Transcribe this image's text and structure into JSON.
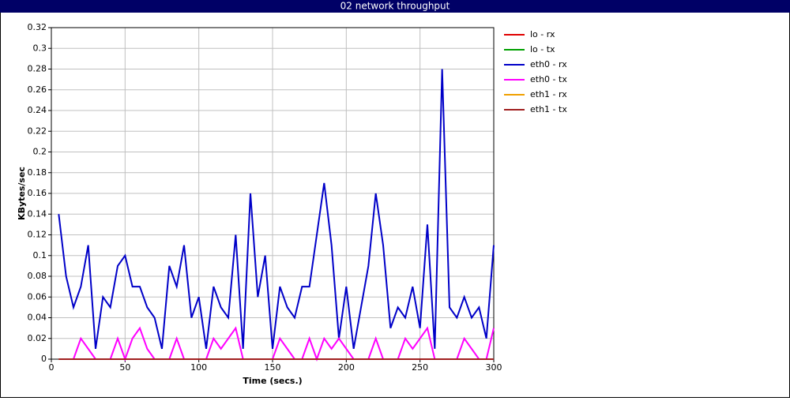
{
  "chart_data": {
    "type": "line",
    "title": "02 network throughput",
    "xlabel": "Time (secs.)",
    "ylabel": "KBytes/sec",
    "x": [
      5,
      10,
      15,
      20,
      25,
      30,
      35,
      40,
      45,
      50,
      55,
      60,
      65,
      70,
      75,
      80,
      85,
      90,
      95,
      100,
      105,
      110,
      115,
      120,
      125,
      130,
      135,
      140,
      145,
      150,
      155,
      160,
      165,
      170,
      175,
      180,
      185,
      190,
      195,
      200,
      205,
      210,
      215,
      220,
      225,
      230,
      235,
      240,
      245,
      250,
      255,
      260,
      265,
      270,
      275,
      280,
      285,
      290,
      295,
      300
    ],
    "xlim": [
      0,
      300
    ],
    "xticks": [
      0,
      50,
      100,
      150,
      200,
      250,
      300
    ],
    "ylim": [
      0,
      0.32
    ],
    "yticks": [
      0,
      0.02,
      0.04,
      0.06,
      0.08,
      0.1,
      0.12,
      0.14,
      0.16,
      0.18,
      0.2,
      0.22,
      0.24,
      0.26,
      0.28,
      0.3,
      0.32
    ],
    "grid": true,
    "legend": "right",
    "series": [
      {
        "name": "lo - rx",
        "color": "#e00000",
        "values": [
          0,
          0,
          0,
          0,
          0,
          0,
          0,
          0,
          0,
          0,
          0,
          0,
          0,
          0,
          0,
          0,
          0,
          0,
          0,
          0,
          0,
          0,
          0,
          0,
          0,
          0,
          0,
          0,
          0,
          0,
          0,
          0,
          0,
          0,
          0,
          0,
          0,
          0,
          0,
          0,
          0,
          0,
          0,
          0,
          0,
          0,
          0,
          0,
          0,
          0,
          0,
          0,
          0,
          0,
          0,
          0,
          0,
          0,
          0,
          0
        ]
      },
      {
        "name": "lo - tx",
        "color": "#00a000",
        "values": [
          0,
          0,
          0,
          0,
          0,
          0,
          0,
          0,
          0,
          0,
          0,
          0,
          0,
          0,
          0,
          0,
          0,
          0,
          0,
          0,
          0,
          0,
          0,
          0,
          0,
          0,
          0,
          0,
          0,
          0,
          0,
          0,
          0,
          0,
          0,
          0,
          0,
          0,
          0,
          0,
          0,
          0,
          0,
          0,
          0,
          0,
          0,
          0,
          0,
          0,
          0,
          0,
          0,
          0,
          0,
          0,
          0,
          0,
          0,
          0
        ]
      },
      {
        "name": "eth0 - rx",
        "color": "#0000c8",
        "values": [
          0.14,
          0.08,
          0.05,
          0.07,
          0.11,
          0.01,
          0.06,
          0.05,
          0.09,
          0.1,
          0.07,
          0.07,
          0.05,
          0.04,
          0.01,
          0.09,
          0.07,
          0.11,
          0.04,
          0.06,
          0.01,
          0.07,
          0.05,
          0.04,
          0.12,
          0.01,
          0.16,
          0.06,
          0.1,
          0.01,
          0.07,
          0.05,
          0.04,
          0.07,
          0.07,
          0.12,
          0.17,
          0.11,
          0.02,
          0.07,
          0.01,
          0.05,
          0.09,
          0.16,
          0.11,
          0.03,
          0.05,
          0.04,
          0.07,
          0.03,
          0.13,
          0.01,
          0.28,
          0.05,
          0.04,
          0.06,
          0.04,
          0.05,
          0.02,
          0.11
        ]
      },
      {
        "name": "eth0 - tx",
        "color": "#ff00ff",
        "values": [
          0,
          0,
          0,
          0.02,
          0.01,
          0,
          0,
          0,
          0.02,
          0,
          0.02,
          0.03,
          0.01,
          0,
          0,
          0,
          0.02,
          0,
          0,
          0,
          0,
          0.02,
          0.01,
          0.02,
          0.03,
          0,
          0,
          0,
          0,
          0,
          0.02,
          0.01,
          0,
          0,
          0.02,
          0,
          0.02,
          0.01,
          0.02,
          0.01,
          0,
          0,
          0,
          0.02,
          0,
          0,
          0,
          0.02,
          0.01,
          0.02,
          0.03,
          0,
          0,
          0,
          0,
          0.02,
          0.01,
          0,
          0,
          0.03
        ]
      },
      {
        "name": "eth1 - rx",
        "color": "#f0a000",
        "values": [
          0,
          0,
          0,
          0,
          0,
          0,
          0,
          0,
          0,
          0,
          0,
          0,
          0,
          0,
          0,
          0,
          0,
          0,
          0,
          0,
          0,
          0,
          0,
          0,
          0,
          0,
          0,
          0,
          0,
          0,
          0,
          0,
          0,
          0,
          0,
          0,
          0,
          0,
          0,
          0,
          0,
          0,
          0,
          0,
          0,
          0,
          0,
          0,
          0,
          0,
          0,
          0,
          0,
          0,
          0,
          0,
          0,
          0,
          0,
          0
        ]
      },
      {
        "name": "eth1 - tx",
        "color": "#a02020",
        "values": [
          0,
          0,
          0,
          0,
          0,
          0,
          0,
          0,
          0,
          0,
          0,
          0,
          0,
          0,
          0,
          0,
          0,
          0,
          0,
          0,
          0,
          0,
          0,
          0,
          0,
          0,
          0,
          0,
          0,
          0,
          0,
          0,
          0,
          0,
          0,
          0,
          0,
          0,
          0,
          0,
          0,
          0,
          0,
          0,
          0,
          0,
          0,
          0,
          0,
          0,
          0,
          0,
          0,
          0,
          0,
          0,
          0,
          0,
          0,
          0
        ]
      }
    ]
  }
}
